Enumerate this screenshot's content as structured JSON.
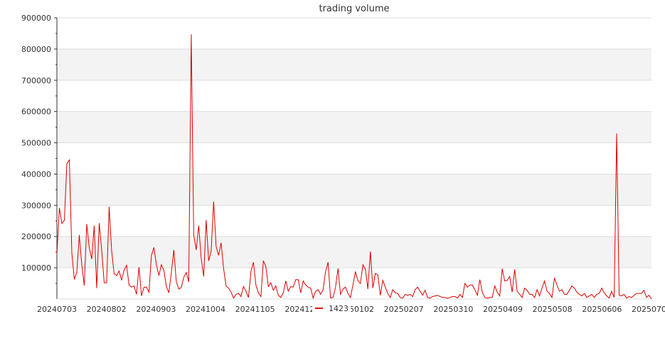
{
  "chart_data": {
    "type": "line",
    "title": "trading volume",
    "xlabel": "",
    "ylabel": "",
    "ylim": [
      0,
      900000
    ],
    "yticks": [
      100000,
      200000,
      300000,
      400000,
      500000,
      600000,
      700000,
      800000,
      900000
    ],
    "xtick_labels": [
      "20240703",
      "20240802",
      "20240903",
      "20241004",
      "20241105",
      "20241206",
      "20250102",
      "20250207",
      "20250310",
      "20250409",
      "20250508",
      "20250606",
      "20250707"
    ],
    "grid": "horizontal bands",
    "legend_position": "bottom-center",
    "series": [
      {
        "name": "1423",
        "color": "#dd0000",
        "values": [
          145000,
          292000,
          242000,
          252000,
          433000,
          445000,
          148000,
          63000,
          85000,
          205000,
          110000,
          43000,
          240000,
          165000,
          128000,
          235000,
          35000,
          243000,
          158000,
          52000,
          52000,
          295000,
          155000,
          82000,
          75000,
          90000,
          60000,
          92000,
          108000,
          45000,
          38000,
          42000,
          15000,
          102000,
          10000,
          38000,
          38000,
          22000,
          140000,
          165000,
          110000,
          75000,
          110000,
          92000,
          40000,
          20000,
          85000,
          157000,
          55000,
          32000,
          37000,
          70000,
          85000,
          55000,
          847000,
          205000,
          157000,
          235000,
          130000,
          72000,
          253000,
          122000,
          153000,
          312000,
          168000,
          140000,
          180000,
          98000,
          42000,
          35000,
          22000,
          3000,
          15000,
          18000,
          8000,
          40000,
          25000,
          5000,
          88000,
          118000,
          45000,
          20000,
          8000,
          123000,
          103000,
          40000,
          52000,
          28000,
          42000,
          12000,
          5000,
          20000,
          58000,
          25000,
          40000,
          38000,
          62000,
          62000,
          20000,
          58000,
          45000,
          38000,
          35000,
          3000,
          25000,
          30000,
          15000,
          30000,
          88000,
          118000,
          3000,
          5000,
          38000,
          98000,
          15000,
          32000,
          38000,
          18000,
          5000,
          45000,
          88000,
          58000,
          50000,
          110000,
          95000,
          32000,
          152000,
          35000,
          82000,
          78000,
          12000,
          60000,
          38000,
          18000,
          5000,
          30000,
          20000,
          18000,
          5000,
          3000,
          15000,
          12000,
          15000,
          8000,
          30000,
          38000,
          25000,
          12000,
          28000,
          5000,
          3000,
          8000,
          10000,
          12000,
          8000,
          5000,
          5000,
          3000,
          5000,
          8000,
          8000,
          3000,
          15000,
          5000,
          50000,
          38000,
          45000,
          45000,
          30000,
          12000,
          62000,
          22000,
          5000,
          3000,
          5000,
          5000,
          42000,
          22000,
          10000,
          97000,
          58000,
          60000,
          72000,
          22000,
          95000,
          25000,
          15000,
          5000,
          35000,
          28000,
          15000,
          15000,
          5000,
          30000,
          10000,
          35000,
          58000,
          25000,
          18000,
          5000,
          68000,
          45000,
          25000,
          30000,
          15000,
          15000,
          28000,
          42000,
          35000,
          22000,
          15000,
          10000,
          18000,
          5000,
          10000,
          15000,
          5000,
          15000,
          18000,
          35000,
          20000,
          10000,
          3000,
          25000,
          5000,
          530000,
          12000,
          10000,
          15000,
          3000,
          8000,
          5000,
          12000,
          18000,
          18000,
          18000,
          28000,
          5000,
          12000,
          0
        ]
      }
    ]
  }
}
